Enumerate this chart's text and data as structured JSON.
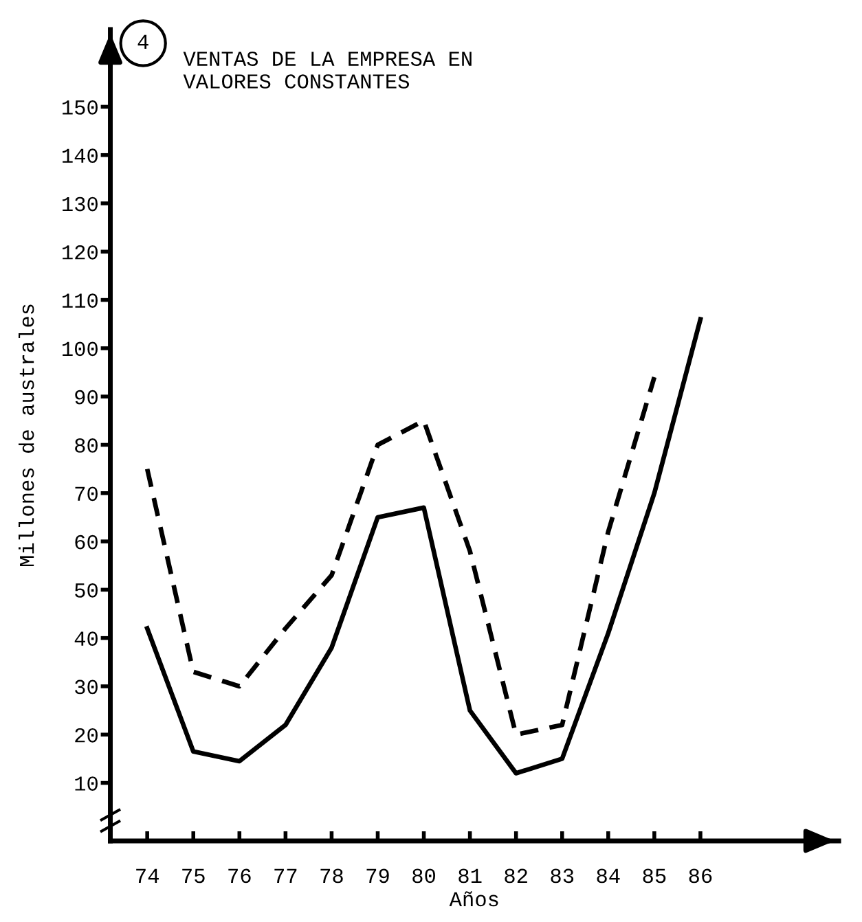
{
  "chart_data": {
    "type": "line",
    "title": "VENTAS DE LA EMPRESA EN\nVALORES CONSTANTES",
    "annotations": [
      "4"
    ],
    "xlabel": "Años",
    "ylabel": "Millones de australes",
    "x": [
      74,
      75,
      76,
      77,
      78,
      79,
      80,
      81,
      82,
      83,
      84,
      85,
      86
    ],
    "series": [
      {
        "color": "#000000",
        "line_style": "solid",
        "values": [
          42,
          16.5,
          14.5,
          22,
          38,
          65,
          67,
          25,
          12,
          15,
          41,
          70,
          106
        ]
      },
      {
        "color": "#000000",
        "line_style": "dashed",
        "values": [
          75,
          33,
          30,
          42,
          53,
          80,
          85,
          58,
          20,
          22,
          62,
          94,
          null
        ]
      }
    ],
    "xlim": [
      73.2,
      89
    ],
    "ylim": [
      -2,
      166
    ],
    "xticks": [
      74,
      75,
      76,
      77,
      78,
      79,
      80,
      81,
      82,
      83,
      84,
      85,
      86
    ],
    "yticks": [
      10,
      20,
      30,
      40,
      50,
      60,
      70,
      80,
      90,
      100,
      110,
      120,
      130,
      140,
      150
    ],
    "grid": false,
    "legend": false,
    "marker": "none"
  }
}
